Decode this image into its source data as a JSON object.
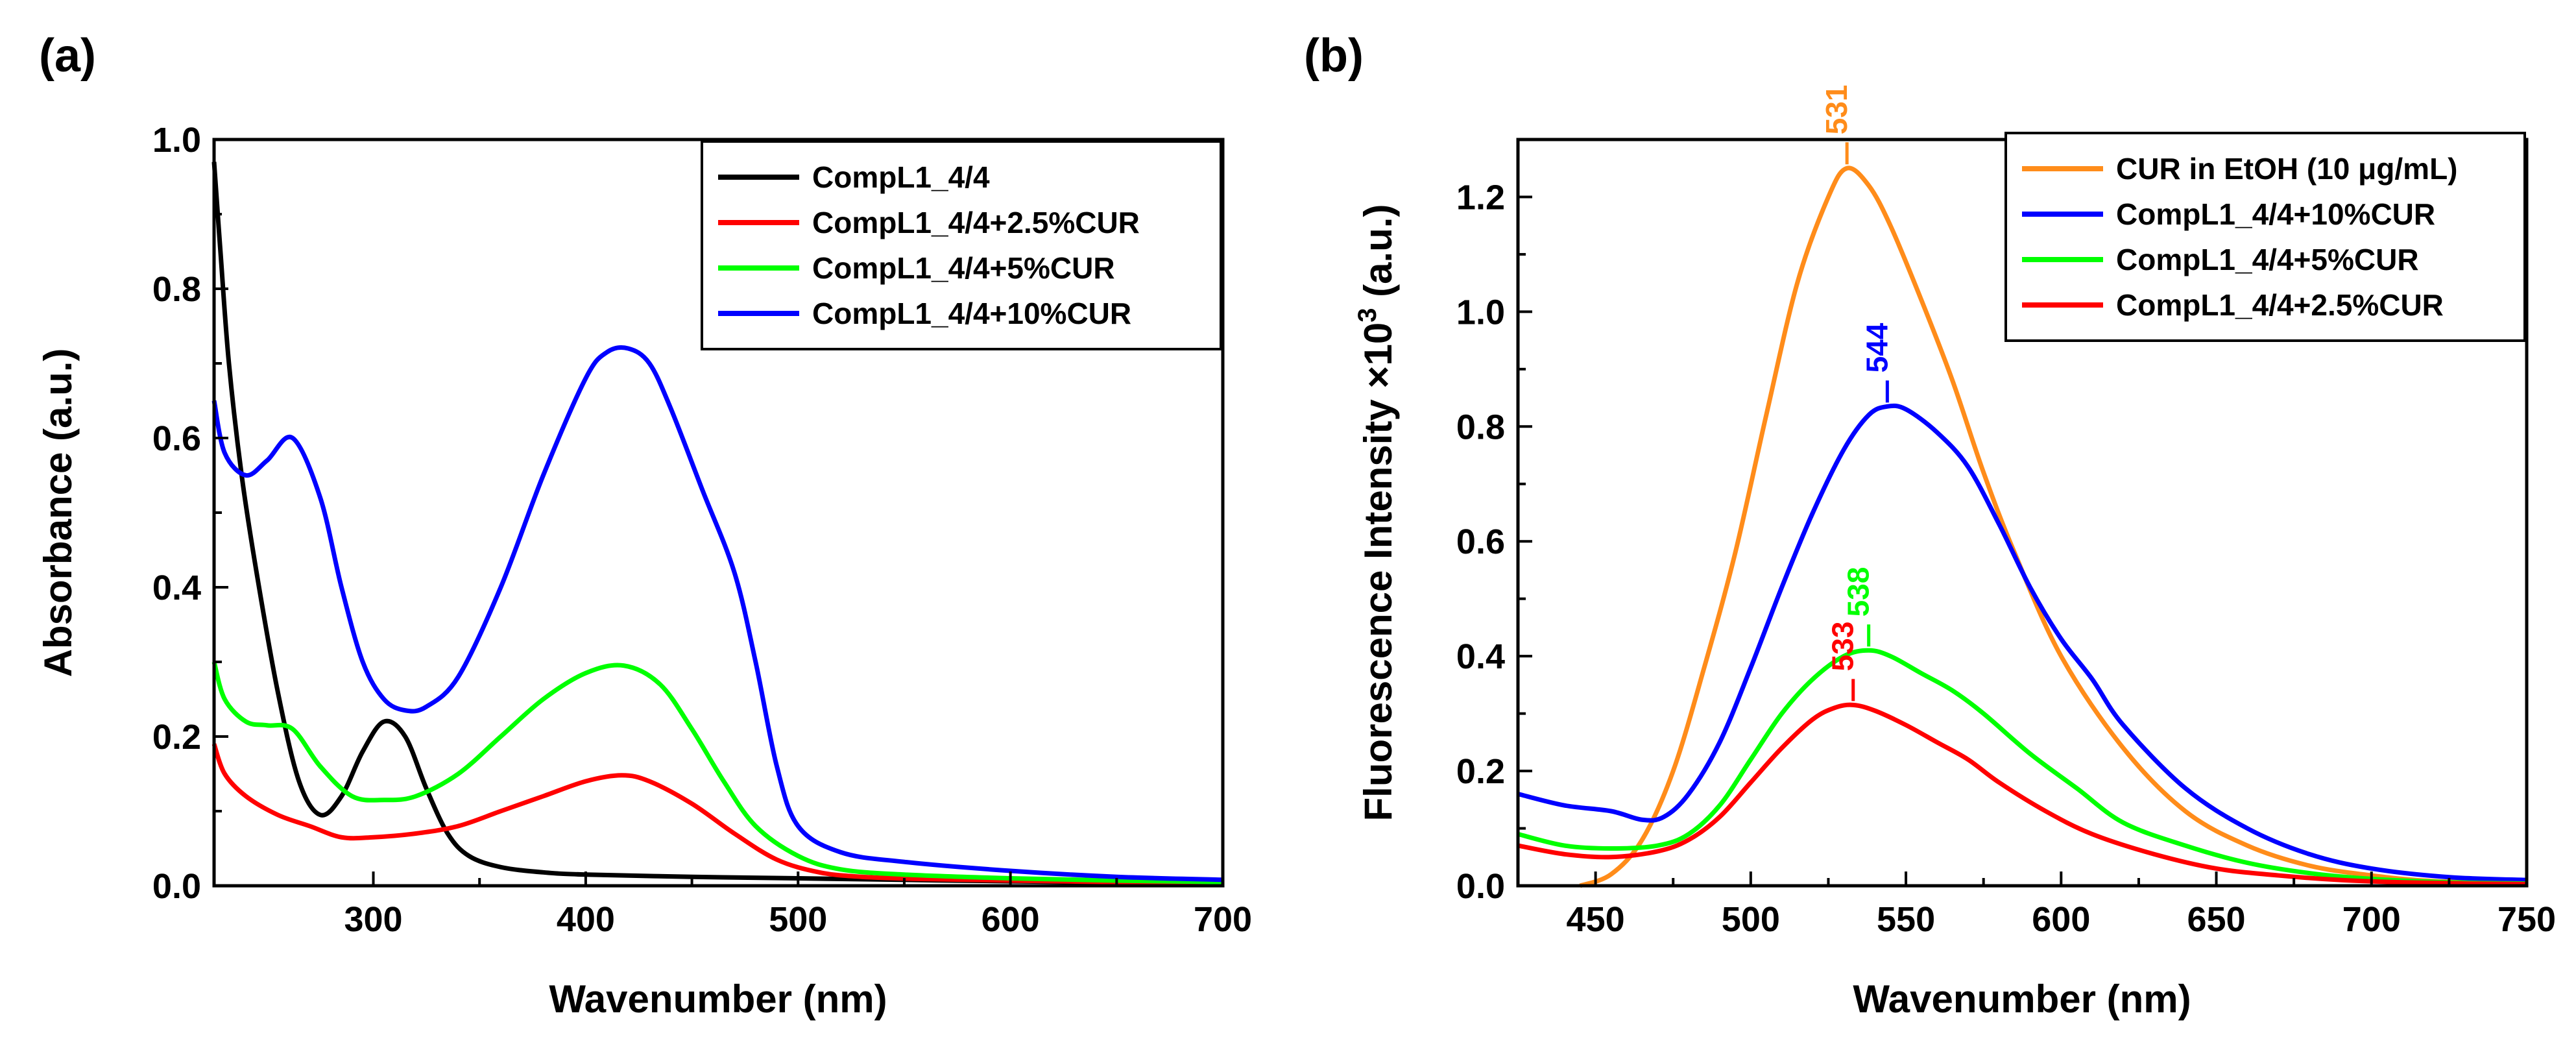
{
  "figure": {
    "panel_a_label": "(a)",
    "panel_b_label": "(b)"
  },
  "chart_data": [
    {
      "type": "line",
      "panel": "(a)",
      "title": "",
      "xlabel": "Wavenumber (nm)",
      "ylabel": "Absorbance (a.u.)",
      "xlim": [
        225,
        700
      ],
      "ylim": [
        0,
        1.0
      ],
      "xticks": [
        300,
        400,
        500,
        600,
        700
      ],
      "xtick_labels": [
        "300",
        "400",
        "500",
        "600",
        "700"
      ],
      "yticks": [
        0,
        0.2,
        0.4,
        0.6,
        0.8,
        1.0
      ],
      "ytick_labels": [
        "0.0",
        "0.2",
        "0.4",
        "0.6",
        "0.8",
        "1.0"
      ],
      "legend_position": "top-right",
      "series": [
        {
          "name": "CompL1_4/4",
          "color": "#000000",
          "x": [
            225,
            228,
            232,
            238,
            245,
            255,
            265,
            275,
            285,
            295,
            305,
            315,
            325,
            335,
            345,
            360,
            380,
            400,
            450,
            500,
            600,
            700
          ],
          "y": [
            0.97,
            0.85,
            0.7,
            0.55,
            0.42,
            0.26,
            0.14,
            0.095,
            0.12,
            0.18,
            0.22,
            0.2,
            0.13,
            0.07,
            0.04,
            0.025,
            0.018,
            0.015,
            0.012,
            0.01,
            0.006,
            0.003
          ]
        },
        {
          "name": "CompL1_4/4+2.5%CUR",
          "color": "#ff0000",
          "x": [
            225,
            230,
            240,
            255,
            270,
            285,
            300,
            320,
            340,
            360,
            380,
            400,
            417,
            430,
            450,
            470,
            490,
            510,
            530,
            560,
            600,
            650,
            700
          ],
          "y": [
            0.19,
            0.15,
            0.12,
            0.095,
            0.08,
            0.065,
            0.065,
            0.07,
            0.08,
            0.1,
            0.12,
            0.14,
            0.148,
            0.14,
            0.11,
            0.07,
            0.035,
            0.018,
            0.012,
            0.009,
            0.007,
            0.005,
            0.004
          ]
        },
        {
          "name": "CompL1_4/4+5%CUR",
          "color": "#00ff00",
          "x": [
            225,
            230,
            240,
            250,
            262,
            275,
            290,
            305,
            320,
            340,
            360,
            380,
            400,
            418,
            435,
            450,
            465,
            480,
            500,
            520,
            550,
            600,
            650,
            700
          ],
          "y": [
            0.3,
            0.25,
            0.22,
            0.215,
            0.21,
            0.16,
            0.12,
            0.115,
            0.12,
            0.15,
            0.2,
            0.25,
            0.285,
            0.295,
            0.27,
            0.21,
            0.14,
            0.08,
            0.04,
            0.022,
            0.015,
            0.01,
            0.007,
            0.005
          ]
        },
        {
          "name": "CompL1_4/4+10%CUR",
          "color": "#0000ff",
          "x": [
            225,
            230,
            240,
            250,
            262,
            275,
            285,
            295,
            305,
            315,
            325,
            340,
            360,
            380,
            400,
            410,
            420,
            430,
            440,
            455,
            470,
            480,
            490,
            500,
            520,
            550,
            600,
            650,
            700
          ],
          "y": [
            0.65,
            0.58,
            0.55,
            0.57,
            0.6,
            0.52,
            0.4,
            0.3,
            0.25,
            0.235,
            0.24,
            0.28,
            0.4,
            0.55,
            0.68,
            0.715,
            0.72,
            0.7,
            0.64,
            0.53,
            0.42,
            0.3,
            0.16,
            0.08,
            0.045,
            0.032,
            0.02,
            0.012,
            0.008
          ]
        }
      ]
    },
    {
      "type": "line",
      "panel": "(b)",
      "title": "",
      "xlabel": "Wavenumber (nm)",
      "ylabel_main": "Fluorescence Intensity ×10",
      "ylabel_sup": "3",
      "ylabel_unit": " (a.u.)",
      "xlim": [
        425,
        750
      ],
      "ylim": [
        0,
        1.3
      ],
      "xticks": [
        450,
        500,
        550,
        600,
        650,
        700,
        750
      ],
      "xtick_labels": [
        "450",
        "500",
        "550",
        "600",
        "650",
        "700",
        "750"
      ],
      "yticks": [
        0,
        0.2,
        0.4,
        0.6,
        0.8,
        1.0,
        1.2
      ],
      "ytick_labels": [
        "0.0",
        "0.2",
        "0.4",
        "0.6",
        "0.8",
        "1.0",
        "1.2"
      ],
      "legend_position": "top-right",
      "series": [
        {
          "name": "CUR in EtOH (10 μg/mL)",
          "color": "#ff8c1a",
          "peak_label": "531",
          "peak_x": 531,
          "peak_y": 1.25,
          "x": [
            445,
            455,
            465,
            475,
            485,
            495,
            505,
            515,
            525,
            531,
            538,
            545,
            555,
            565,
            575,
            585,
            600,
            620,
            640,
            660,
            680,
            700,
            720,
            750
          ],
          "y": [
            0.0,
            0.02,
            0.08,
            0.2,
            0.38,
            0.58,
            0.82,
            1.05,
            1.2,
            1.25,
            1.22,
            1.15,
            1.02,
            0.88,
            0.72,
            0.58,
            0.4,
            0.24,
            0.13,
            0.07,
            0.035,
            0.018,
            0.008,
            0.004
          ]
        },
        {
          "name": "CompL1_4/4+10%CUR",
          "color": "#0000ff",
          "peak_label": "544",
          "peak_x": 544,
          "peak_y": 0.835,
          "x": [
            425,
            440,
            455,
            465,
            472,
            480,
            490,
            500,
            510,
            520,
            530,
            538,
            544,
            550,
            560,
            570,
            580,
            590,
            600,
            610,
            620,
            640,
            660,
            680,
            700,
            725,
            750
          ],
          "y": [
            0.16,
            0.14,
            0.13,
            0.115,
            0.12,
            0.16,
            0.25,
            0.38,
            0.52,
            0.65,
            0.76,
            0.82,
            0.835,
            0.83,
            0.79,
            0.73,
            0.63,
            0.52,
            0.43,
            0.36,
            0.28,
            0.17,
            0.1,
            0.055,
            0.03,
            0.015,
            0.01
          ]
        },
        {
          "name": "CompL1_4/4+5%CUR",
          "color": "#00ff00",
          "peak_label": "538",
          "peak_x": 538,
          "peak_y": 0.41,
          "x": [
            425,
            440,
            455,
            470,
            480,
            490,
            500,
            510,
            520,
            530,
            538,
            545,
            555,
            565,
            575,
            590,
            605,
            620,
            640,
            660,
            680,
            700,
            725,
            750
          ],
          "y": [
            0.09,
            0.07,
            0.065,
            0.07,
            0.09,
            0.14,
            0.22,
            0.3,
            0.36,
            0.4,
            0.41,
            0.4,
            0.37,
            0.34,
            0.3,
            0.23,
            0.17,
            0.11,
            0.07,
            0.04,
            0.022,
            0.012,
            0.006,
            0.004
          ]
        },
        {
          "name": "CompL1_4/4+2.5%CUR",
          "color": "#ff0000",
          "peak_label": "533",
          "peak_x": 533,
          "peak_y": 0.315,
          "x": [
            425,
            440,
            455,
            470,
            480,
            490,
            500,
            510,
            520,
            527,
            533,
            540,
            550,
            560,
            570,
            580,
            595,
            610,
            630,
            650,
            670,
            690,
            710,
            730,
            750
          ],
          "y": [
            0.07,
            0.055,
            0.05,
            0.06,
            0.08,
            0.12,
            0.18,
            0.24,
            0.29,
            0.31,
            0.315,
            0.305,
            0.28,
            0.25,
            0.22,
            0.18,
            0.13,
            0.09,
            0.055,
            0.03,
            0.018,
            0.01,
            0.006,
            0.004,
            0.003
          ]
        }
      ]
    }
  ]
}
